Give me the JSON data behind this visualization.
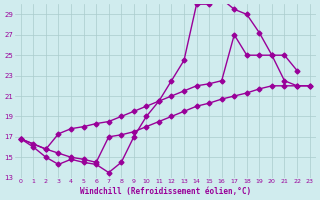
{
  "bg_color": "#d0ecee",
  "grid_color": "#aacccc",
  "line_color": "#990099",
  "marker": "D",
  "markersize": 2.5,
  "linewidth": 1.0,
  "xlabel": "Windchill (Refroidissement éolien,°C)",
  "xlabel_color": "#990099",
  "xlim": [
    -0.5,
    23.5
  ],
  "ylim": [
    13,
    30
  ],
  "xticks": [
    0,
    1,
    2,
    3,
    4,
    5,
    6,
    7,
    8,
    9,
    10,
    11,
    12,
    13,
    14,
    15,
    16,
    17,
    18,
    19,
    20,
    21,
    22,
    23
  ],
  "yticks": [
    13,
    15,
    17,
    19,
    21,
    23,
    25,
    27,
    29
  ],
  "line1_x": [
    0,
    1,
    2,
    3,
    4,
    5,
    6,
    7,
    8,
    9,
    10,
    11,
    12,
    13,
    14,
    15,
    16,
    17,
    18,
    19,
    20,
    21,
    22
  ],
  "line1_y": [
    16.8,
    16.0,
    15.0,
    14.3,
    14.8,
    14.5,
    14.3,
    13.5,
    14.5,
    17.0,
    19.0,
    20.5,
    22.5,
    24.5,
    30.0,
    30.0,
    30.5,
    29.5,
    29.0,
    27.2,
    25.0,
    25.0,
    23.5
  ],
  "line2_x": [
    0,
    2,
    3,
    4,
    5,
    6,
    7,
    8,
    9,
    10,
    11,
    12,
    13,
    14,
    15,
    16,
    17,
    18,
    19,
    20,
    21,
    22,
    23
  ],
  "line2_y": [
    16.8,
    15.8,
    17.3,
    17.8,
    18.0,
    18.3,
    18.5,
    19.0,
    19.5,
    20.0,
    20.5,
    21.0,
    21.5,
    22.0,
    22.2,
    22.5,
    27.0,
    25.0,
    25.0,
    25.0,
    22.5,
    22.0,
    22.0
  ],
  "line3_x": [
    0,
    1,
    2,
    3,
    4,
    5,
    6,
    7,
    8,
    9,
    10,
    11,
    12,
    13,
    14,
    15,
    16,
    17,
    18,
    19,
    20,
    21,
    22,
    23
  ],
  "line3_y": [
    16.8,
    16.3,
    15.8,
    15.4,
    15.0,
    14.8,
    14.5,
    17.0,
    17.2,
    17.5,
    18.0,
    18.5,
    19.0,
    19.5,
    20.0,
    20.3,
    20.7,
    21.0,
    21.3,
    21.7,
    22.0,
    22.0,
    22.0,
    22.0
  ]
}
